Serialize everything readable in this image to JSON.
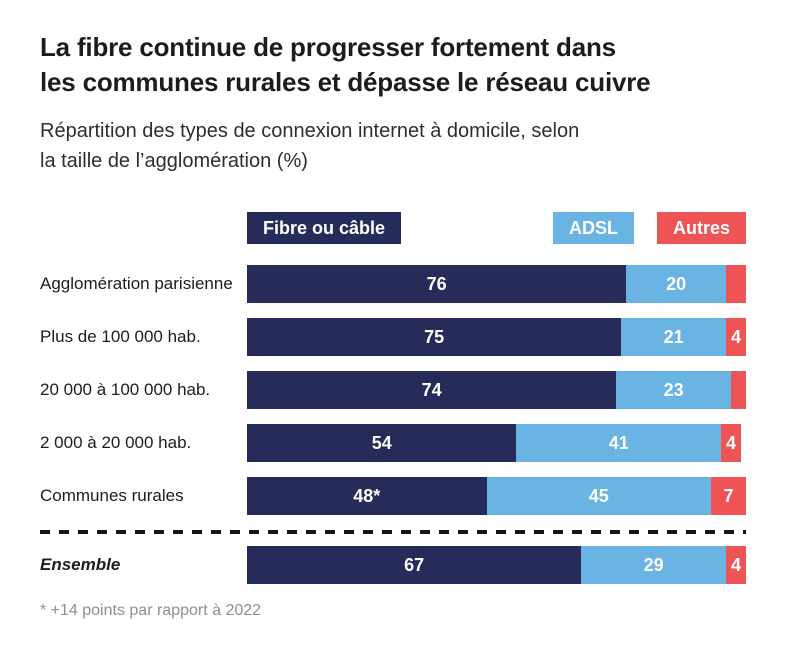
{
  "header": {
    "title_lines": [
      "La fibre continue de progresser fortement dans",
      "les communes rurales et dépasse le réseau cuivre"
    ],
    "subtitle_lines": [
      "Répartition des types de connexion internet à domicile, selon",
      "la taille de l’agglomération (%)"
    ]
  },
  "chart_data": {
    "type": "bar",
    "variant": "horizontal-stacked",
    "unit": "%",
    "xlim": [
      0,
      100
    ],
    "legend_position": "top",
    "series": [
      {
        "name": "Fibre ou câble",
        "color": "#262b5a"
      },
      {
        "name": "ADSL",
        "color": "#69b4e2"
      },
      {
        "name": "Autres",
        "color": "#ee5355"
      }
    ],
    "categories": [
      "Agglomération parisienne",
      "Plus de 100 000 hab.",
      "20 000 à 100 000 hab.",
      "2 000 à 20 000 hab.",
      "Communes rurales",
      "Ensemble"
    ],
    "rows": [
      {
        "category": "Agglomération parisienne",
        "values": [
          76,
          20,
          4
        ],
        "labels": [
          "76",
          "20",
          ""
        ]
      },
      {
        "category": "Plus de 100 000 hab.",
        "values": [
          75,
          21,
          4
        ],
        "labels": [
          "75",
          "21",
          "4"
        ]
      },
      {
        "category": "20 000 à 100 000 hab.",
        "values": [
          74,
          23,
          3
        ],
        "labels": [
          "74",
          "23",
          ""
        ]
      },
      {
        "category": "2 000 à 20 000 hab.",
        "values": [
          54,
          41,
          4
        ],
        "labels": [
          "54",
          "41",
          "4"
        ]
      },
      {
        "category": "Communes rurales",
        "values": [
          48,
          45,
          7
        ],
        "labels": [
          "48*",
          "45",
          "7"
        ]
      },
      {
        "category": "Ensemble",
        "values": [
          67,
          29,
          4
        ],
        "labels": [
          "67",
          "29",
          "4"
        ]
      }
    ],
    "footnote": "* +14 points par rapport à 2022"
  }
}
